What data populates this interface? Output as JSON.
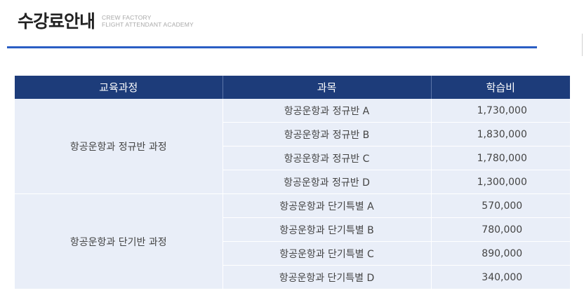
{
  "header": {
    "title": "수강료안내",
    "subtitle_line1": "CREW FACTORY",
    "subtitle_line2": "FLIGHT ATTENDANT ACADEMY"
  },
  "colors": {
    "accent_rule": "#2a5ec4",
    "table_header_bg": "#1d3c7a",
    "table_body_bg": "#e9eef8"
  },
  "table": {
    "headers": [
      "교육과정",
      "과목",
      "학습비"
    ],
    "groups": [
      {
        "course": "항공운항과 정규반 과정",
        "rows": [
          {
            "subject": "항공운항과 정규반 A",
            "fee": "1,730,000"
          },
          {
            "subject": "항공운항과 정규반 B",
            "fee": "1,830,000"
          },
          {
            "subject": "항공운항과 정규반 C",
            "fee": "1,780,000"
          },
          {
            "subject": "항공운항과 정규반 D",
            "fee": "1,300,000"
          }
        ]
      },
      {
        "course": "항공운항과 단기반 과정",
        "rows": [
          {
            "subject": "항공운항과 단기특별 A",
            "fee": "570,000"
          },
          {
            "subject": "항공운항과 단기특별 B",
            "fee": "780,000"
          },
          {
            "subject": "항공운항과 단기특별 C",
            "fee": "890,000"
          },
          {
            "subject": "항공운항과 단기특별 D",
            "fee": "340,000"
          }
        ]
      }
    ]
  }
}
